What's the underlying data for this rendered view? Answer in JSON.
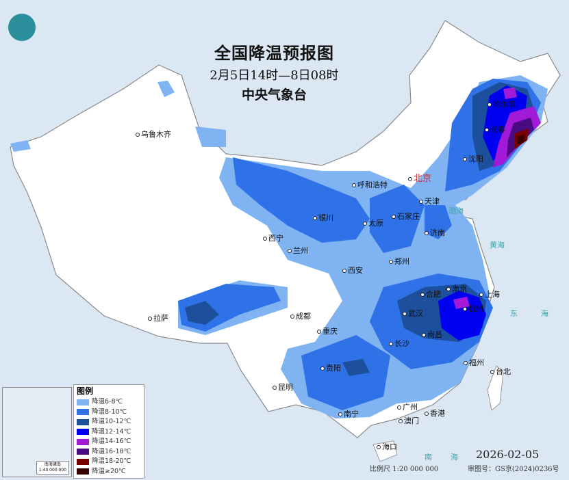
{
  "header": {
    "title": "全国降温预报图",
    "period": "2月5日14时—8日08时",
    "issuer": "中央气象台"
  },
  "legend": {
    "title": "图例",
    "items": [
      {
        "label": "降温6-8℃",
        "color": "#80b3f2"
      },
      {
        "label": "降温8-10℃",
        "color": "#2f72e8"
      },
      {
        "label": "降温10-12℃",
        "color": "#1c4f9c"
      },
      {
        "label": "降温12-14℃",
        "color": "#0000f0"
      },
      {
        "label": "降温14-16℃",
        "color": "#a21ad8"
      },
      {
        "label": "降温16-18℃",
        "color": "#4a0a82"
      },
      {
        "label": "降温18-20℃",
        "color": "#7a0000"
      },
      {
        "label": "降温≥20℃",
        "color": "#3a0000"
      }
    ]
  },
  "cities": [
    {
      "name": "乌鲁木齐"
    },
    {
      "name": "呼和浩特"
    },
    {
      "name": "北京"
    },
    {
      "name": "天津"
    },
    {
      "name": "沈阳"
    },
    {
      "name": "长春"
    },
    {
      "name": "哈尔滨"
    },
    {
      "name": "银川"
    },
    {
      "name": "太原"
    },
    {
      "name": "石家庄"
    },
    {
      "name": "济南"
    },
    {
      "name": "西宁"
    },
    {
      "name": "兰州"
    },
    {
      "name": "西安"
    },
    {
      "name": "郑州"
    },
    {
      "name": "合肥"
    },
    {
      "name": "南京"
    },
    {
      "name": "上海"
    },
    {
      "name": "杭州"
    },
    {
      "name": "武汉"
    },
    {
      "name": "南昌"
    },
    {
      "name": "长沙"
    },
    {
      "name": "福州"
    },
    {
      "name": "台北"
    },
    {
      "name": "拉萨"
    },
    {
      "name": "成都"
    },
    {
      "name": "重庆"
    },
    {
      "name": "贵阳"
    },
    {
      "name": "昆明"
    },
    {
      "name": "南宁"
    },
    {
      "name": "广州"
    },
    {
      "name": "澳门"
    },
    {
      "name": "香港"
    },
    {
      "name": "海口"
    }
  ],
  "seas": {
    "bohai": "渤海",
    "huanghai": "黄海",
    "donghai_1": "东",
    "donghai_2": "海",
    "nanhai_1": "南",
    "nanhai_2": "海"
  },
  "inset": {
    "title": "南海诸岛",
    "scale": "1:40 000 000"
  },
  "footer": {
    "date": "2026-02-05",
    "scale": "比例尺 1:20 000 000",
    "approval": "审图号：GS京(2024)0236号"
  }
}
